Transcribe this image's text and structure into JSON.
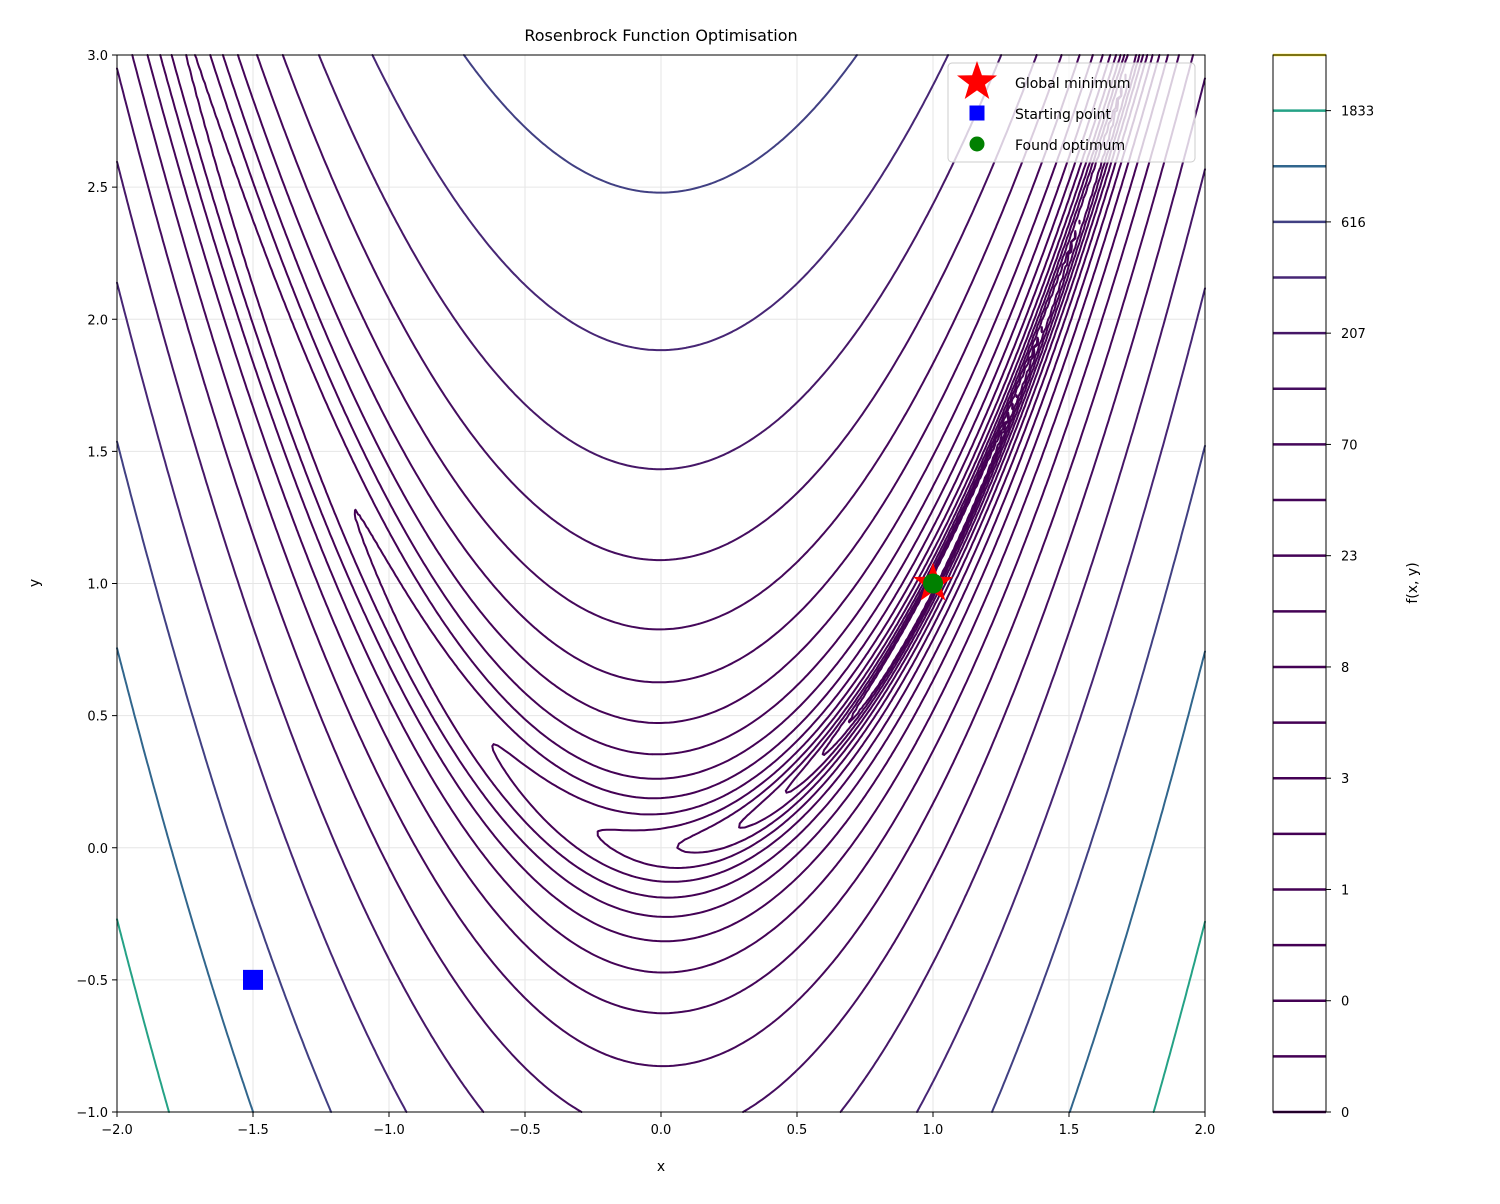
{
  "chart_data": {
    "type": "contour",
    "title": "Rosenbrock Function Optimisation",
    "xlabel": "x",
    "ylabel": "y",
    "xlim": [
      -2.0,
      2.0
    ],
    "ylim": [
      -1.0,
      3.0
    ],
    "xticks": [
      "−2.0",
      "−1.5",
      "−1.0",
      "−0.5",
      "0.0",
      "0.5",
      "1.0",
      "1.5",
      "2.0"
    ],
    "yticks": [
      "−1.0",
      "−0.5",
      "0.0",
      "0.5",
      "1.0",
      "1.5",
      "2.0",
      "2.5",
      "3.0"
    ],
    "grid": true,
    "colormap": "viridis",
    "levels": [
      0.1,
      0.172,
      0.298,
      0.513,
      0.885,
      1.526,
      2.633,
      4.541,
      7.83,
      13.51,
      23.3,
      40.2,
      69.3,
      119.5,
      206.2,
      355.6,
      615.6,
      1062,
      1833,
      3162
    ],
    "colorbar": {
      "label": "f(x, y)",
      "tick_labels": [
        "0",
        "0",
        "1",
        "3",
        "8",
        "23",
        "70",
        "207",
        "616",
        "1833"
      ]
    },
    "points": [
      {
        "name": "Global minimum",
        "x": 1.0,
        "y": 1.0,
        "marker": "star",
        "color": "#ff0000"
      },
      {
        "name": "Starting point",
        "x": -1.5,
        "y": -0.5,
        "marker": "square",
        "color": "#0000ff"
      },
      {
        "name": "Found optimum",
        "x": 1.0,
        "y": 1.0,
        "marker": "circle",
        "color": "#008000"
      }
    ],
    "legend_position": "top-right"
  }
}
